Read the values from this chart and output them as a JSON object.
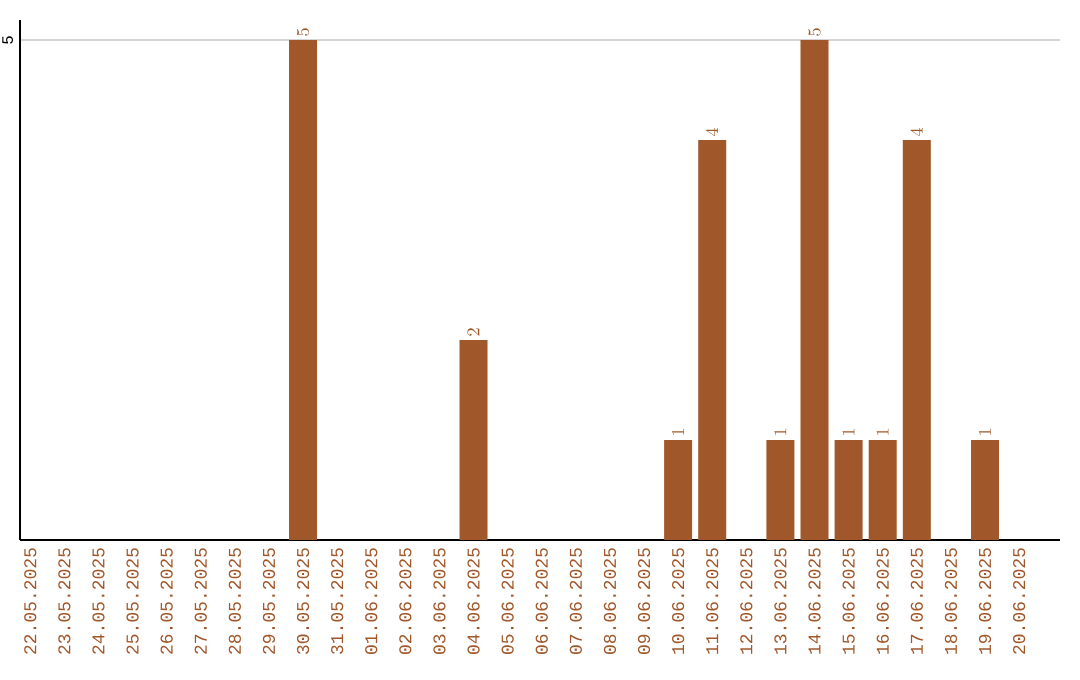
{
  "chart_data": {
    "type": "bar",
    "categories": [
      "22.05.2025",
      "23.05.2025",
      "24.05.2025",
      "25.05.2025",
      "26.05.2025",
      "27.05.2025",
      "28.05.2025",
      "29.05.2025",
      "30.05.2025",
      "31.05.2025",
      "01.06.2025",
      "02.06.2025",
      "03.06.2025",
      "04.06.2025",
      "05.06.2025",
      "06.06.2025",
      "07.06.2025",
      "08.06.2025",
      "09.06.2025",
      "10.06.2025",
      "11.06.2025",
      "12.06.2025",
      "13.06.2025",
      "14.06.2025",
      "15.06.2025",
      "16.06.2025",
      "17.06.2025",
      "18.06.2025",
      "19.06.2025",
      "20.06.2025"
    ],
    "values": [
      null,
      null,
      null,
      null,
      null,
      null,
      null,
      null,
      5,
      null,
      null,
      null,
      null,
      2,
      null,
      null,
      null,
      null,
      null,
      1,
      4,
      null,
      1,
      5,
      1,
      1,
      4,
      null,
      1,
      null
    ],
    "color": "#a0572a",
    "ylim": [
      0,
      5.2
    ],
    "yticks": [
      5
    ],
    "grid": "y",
    "data_labels": true
  }
}
